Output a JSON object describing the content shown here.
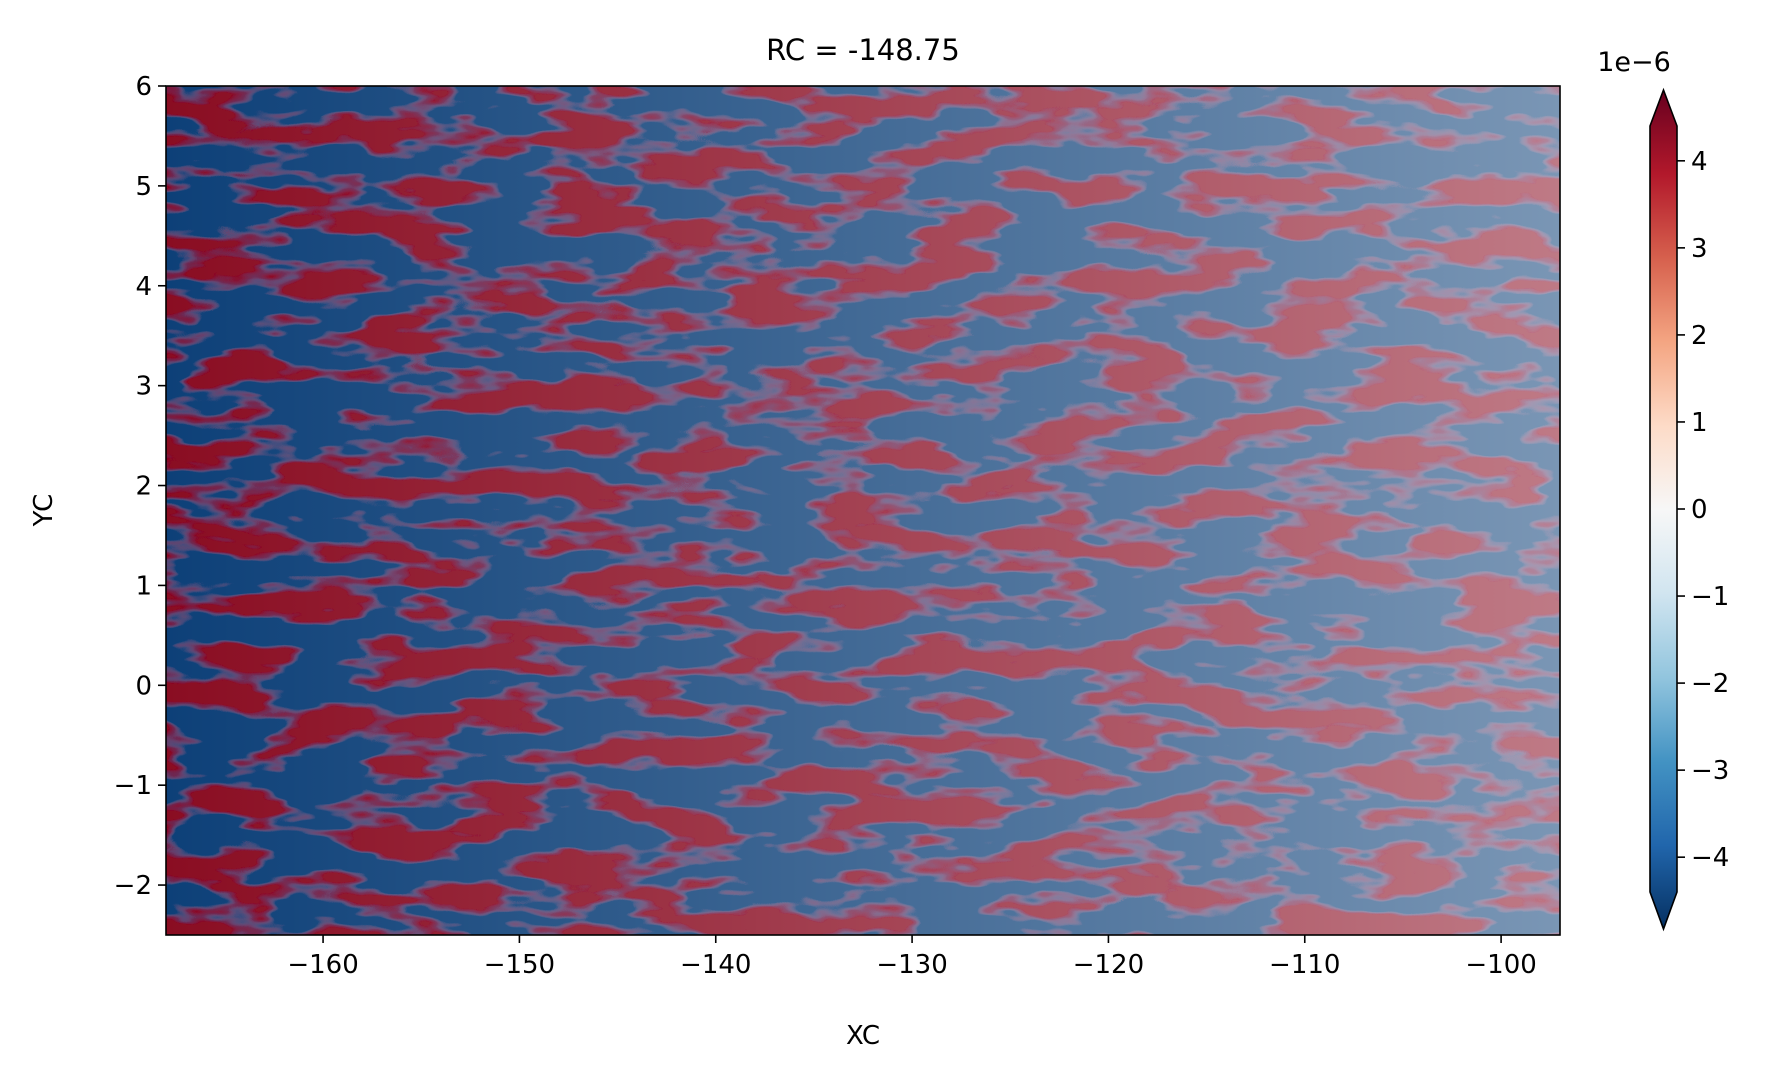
{
  "chart_data": {
    "type": "heatmap",
    "title": "RC = -148.75",
    "xlabel": "XC",
    "ylabel": "YC",
    "xlim": [
      -168,
      -97
    ],
    "ylim": [
      -2.5,
      6
    ],
    "x_ticks": [
      -160,
      -150,
      -140,
      -130,
      -120,
      -110,
      -100
    ],
    "x_tick_labels": [
      "−160",
      "−150",
      "−140",
      "−130",
      "−120",
      "−110",
      "−100"
    ],
    "y_ticks": [
      -2,
      -1,
      0,
      1,
      2,
      3,
      4,
      5,
      6
    ],
    "y_tick_labels": [
      "−2",
      "−1",
      "0",
      "1",
      "2",
      "3",
      "4",
      "5",
      "6"
    ],
    "colorbar": {
      "colormap": "RdBu_r",
      "range": [
        -4.4,
        4.4
      ],
      "extend": "both",
      "ticks": [
        -4,
        -3,
        -2,
        -1,
        0,
        1,
        2,
        3,
        4
      ],
      "tick_labels": [
        "−4",
        "−3",
        "−2",
        "−1",
        "0",
        "1",
        "2",
        "3",
        "4"
      ],
      "offset_label": "1e−6",
      "colors": [
        "#67001f",
        "#b2182b",
        "#d6604d",
        "#f4a582",
        "#fddbc7",
        "#f7f7f7",
        "#d1e5f0",
        "#92c5de",
        "#4393c3",
        "#2166ac",
        "#053061"
      ]
    },
    "grid": false
  }
}
